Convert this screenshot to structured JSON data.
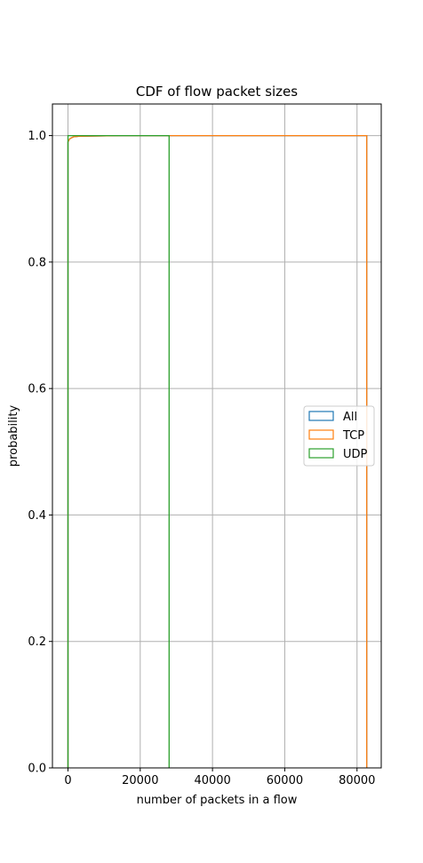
{
  "chart_data": {
    "type": "line",
    "title": "CDF of flow packet sizes",
    "xlabel": "number of packets in a flow",
    "ylabel": "probability",
    "xlim": [
      -4300,
      86700
    ],
    "ylim": [
      0,
      1.05
    ],
    "xticks": [
      0,
      20000,
      40000,
      60000,
      80000
    ],
    "xtick_labels": [
      "0",
      "20000",
      "40000",
      "60000",
      "80000"
    ],
    "yticks": [
      0.0,
      0.2,
      0.4,
      0.6,
      0.8,
      1.0
    ],
    "ytick_labels": [
      "0.0",
      "0.2",
      "0.4",
      "0.6",
      "0.8",
      "1.0"
    ],
    "grid": true,
    "legend_position": "center-right",
    "series": [
      {
        "name": "All",
        "color": "#1f77b4",
        "x": [
          0,
          0,
          500,
          1500,
          3000,
          15000,
          82700,
          82700
        ],
        "y": [
          0,
          0.99,
          0.995,
          0.998,
          0.999,
          1.0,
          1.0,
          0
        ]
      },
      {
        "name": "TCP",
        "color": "#ff7f0e",
        "x": [
          0,
          0,
          500,
          1500,
          3000,
          15000,
          82700,
          82700
        ],
        "y": [
          0,
          0.99,
          0.995,
          0.998,
          0.999,
          1.0,
          1.0,
          0
        ]
      },
      {
        "name": "UDP",
        "color": "#2ca02c",
        "x": [
          0,
          0,
          28000,
          28000
        ],
        "y": [
          0,
          1.0,
          1.0,
          0
        ]
      }
    ]
  }
}
